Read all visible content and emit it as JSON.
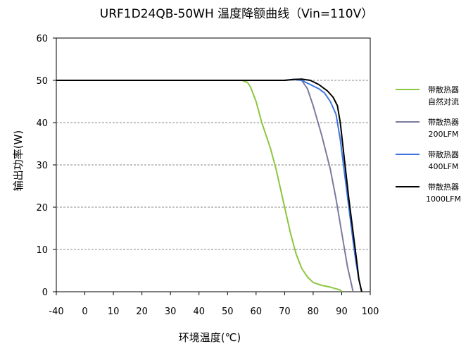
{
  "chart_data": {
    "type": "line",
    "title": "URF1D24QB-50WH 温度降额曲线（Vin=110V）",
    "xlabel": "环境温度(℃)",
    "ylabel": "输出功率(W)",
    "xlim": [
      -40,
      100
    ],
    "ylim": [
      0,
      60
    ],
    "xticks": [
      "-40",
      "0",
      "10",
      "20",
      "30",
      "40",
      "50",
      "60",
      "70",
      "80",
      "90",
      "100"
    ],
    "yticks": [
      "0",
      "10",
      "20",
      "30",
      "40",
      "50",
      "60"
    ],
    "grid": "horizontal dashed",
    "legend_position": "right",
    "series": [
      {
        "name_lines": [
          "带散热器",
          "自然对流"
        ],
        "color": "#8dc63f",
        "points": [
          [
            -40,
            50
          ],
          [
            55,
            50
          ],
          [
            57,
            49.5
          ],
          [
            58,
            48.5
          ],
          [
            60,
            45
          ],
          [
            62,
            40
          ],
          [
            65,
            34
          ],
          [
            67,
            29
          ],
          [
            70,
            20
          ],
          [
            72,
            14
          ],
          [
            74,
            9
          ],
          [
            76,
            5.5
          ],
          [
            78,
            3.5
          ],
          [
            80,
            2.2
          ],
          [
            83,
            1.5
          ],
          [
            86,
            1.1
          ],
          [
            88,
            0.7
          ],
          [
            89.5,
            0.4
          ],
          [
            90,
            0
          ]
        ]
      },
      {
        "name_lines": [
          "带散热器",
          "200LFM"
        ],
        "color": "#7a7a9e",
        "points": [
          [
            -40,
            50
          ],
          [
            70,
            50
          ],
          [
            74,
            50.2
          ],
          [
            76,
            50
          ],
          [
            78,
            48
          ],
          [
            80,
            44
          ],
          [
            83,
            37
          ],
          [
            86,
            29
          ],
          [
            88,
            22
          ],
          [
            90,
            14
          ],
          [
            92,
            6
          ],
          [
            94,
            0
          ]
        ]
      },
      {
        "name_lines": [
          "带散热器",
          "400LFM"
        ],
        "color": "#3d74e0",
        "points": [
          [
            -40,
            50
          ],
          [
            70,
            50
          ],
          [
            73,
            50.2
          ],
          [
            76,
            50
          ],
          [
            79,
            49
          ],
          [
            82,
            48
          ],
          [
            84,
            47
          ],
          [
            86,
            45
          ],
          [
            88,
            42
          ],
          [
            89.5,
            36
          ],
          [
            91,
            28
          ],
          [
            92.5,
            20
          ],
          [
            94,
            12
          ],
          [
            95,
            7
          ],
          [
            96,
            3
          ],
          [
            97,
            0
          ]
        ]
      },
      {
        "name_lines": [
          "带散热器",
          "1000LFM"
        ],
        "color": "#000000",
        "points": [
          [
            -40,
            50
          ],
          [
            70,
            50
          ],
          [
            73,
            50.2
          ],
          [
            76,
            50.3
          ],
          [
            79,
            50
          ],
          [
            82,
            49
          ],
          [
            85,
            47.5
          ],
          [
            87,
            46
          ],
          [
            88.5,
            44
          ],
          [
            89.5,
            40
          ],
          [
            90.5,
            34
          ],
          [
            91.5,
            28
          ],
          [
            92.5,
            22
          ],
          [
            94,
            14
          ],
          [
            95.5,
            6
          ],
          [
            96,
            3
          ],
          [
            97,
            0
          ]
        ]
      }
    ]
  }
}
